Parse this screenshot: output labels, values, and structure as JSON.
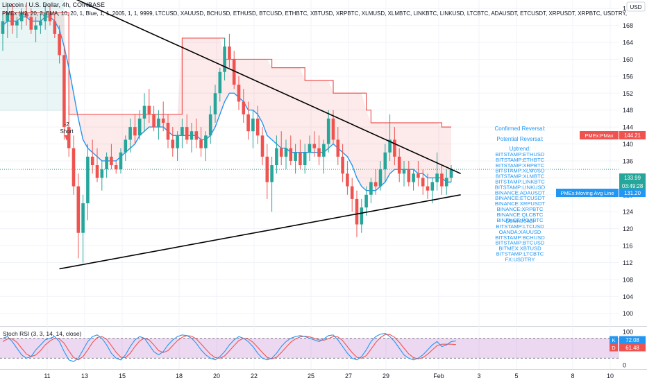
{
  "header": {
    "symbol": "Litecoin / U.S. Dollar, 4h, COINBASE",
    "indicator": "PMEx (H2, 20, 3, EMA, 10, 20, 1, Blue, 1, 1, 2005, 1, 1, 9999, LTCUSD, XAUUSD, BCHUSD, ETHUSD, BTCUSD, ETHBTC, XBTUSD, XRPBTC, XLMUSD, XLMBTC, LINKBTC, LINKUSD, LTCBTC, ADAUSDT, ETCUSDT, XRPUSDT, XRPBTC, USDTRY,"
  },
  "currency_badge": "USD",
  "rsi_label": "Stoch RSI (3, 3, 14, 14, close)",
  "short_signal": {
    "line1": "-2",
    "line2": "Short"
  },
  "panel": {
    "confirmed": "Confirmed Reversal:",
    "potential": "Potential Reversal:",
    "uptrend_title": "Uptrend:",
    "uptrend": [
      "BITSTAMP:ETHUSD",
      "BITSTAMP:ETHBTC",
      "BITSTAMP:XRPBTC",
      "BITSTAMP:XLMUSD",
      "BITSTAMP:XLMBTC",
      "BITSTAMP:LINKBTC",
      "BITSTAMP:LINKUSD",
      "BINANCE:ADAUSDT",
      "BINANCE:ETCUSDT",
      "BINANCE:XRPUSDT",
      "BINANCE:XRPBTC",
      "BINANCE:QLCBTC",
      "BINANCE:POABTC"
    ],
    "downtrend_title": "Downtrend:",
    "downtrend": [
      "BITSTAMP:LTCUSD",
      "OANDA:XAUUSD",
      "BITSTAMP:BCHUSD",
      "BITSTAMP:BTCUSD",
      "BITMEX:XBTUSD",
      "BITSTAMP:LTCBTC",
      "FX:USDTRY"
    ]
  },
  "price_tags": [
    {
      "label": "PMEx:PMax",
      "value": "144.21",
      "color": "#ef5350"
    },
    {
      "label": "",
      "value": "133.99",
      "color": "#26a69a"
    },
    {
      "label": "",
      "value": "03:49:28",
      "color": "#26a69a"
    },
    {
      "label": "PMEx:Moving Avg Line",
      "value": "131.20",
      "color": "#2196f3"
    }
  ],
  "rsi_tags": [
    {
      "label": "K",
      "value": "72.08",
      "color": "#2196f3"
    },
    {
      "label": "D",
      "value": "61.48",
      "color": "#ef5350"
    }
  ],
  "chart_data": {
    "type": "candlestick",
    "price_axis": {
      "ylim": [
        97,
        174
      ],
      "ticks": [
        100,
        104,
        108,
        112,
        116,
        120,
        124,
        128,
        132,
        136,
        140,
        144,
        148,
        152,
        156,
        160,
        164,
        168,
        172
      ]
    },
    "time_axis": {
      "labels": [
        "11",
        "13",
        "15",
        "18",
        "20",
        "22",
        "25",
        "27",
        "29",
        "Feb",
        "3",
        "5",
        "8",
        "10"
      ]
    },
    "ohlc": [
      [
        166,
        171,
        162,
        169
      ],
      [
        169,
        173,
        165,
        171
      ],
      [
        171,
        173,
        166,
        168
      ],
      [
        168,
        170,
        165,
        169
      ],
      [
        169,
        172,
        167,
        171
      ],
      [
        171,
        173,
        168,
        170
      ],
      [
        170,
        172,
        166,
        167
      ],
      [
        167,
        170,
        164,
        168
      ],
      [
        168,
        171,
        166,
        169
      ],
      [
        169,
        173,
        167,
        171
      ],
      [
        171,
        173,
        168,
        169
      ],
      [
        169,
        171,
        165,
        166
      ],
      [
        166,
        168,
        159,
        161
      ],
      [
        161,
        163,
        141,
        144
      ],
      [
        144,
        149,
        137,
        139
      ],
      [
        139,
        142,
        128,
        130
      ],
      [
        130,
        133,
        113,
        119
      ],
      [
        119,
        128,
        112,
        126
      ],
      [
        126,
        140,
        122,
        137
      ],
      [
        137,
        141,
        133,
        135
      ],
      [
        135,
        139,
        131,
        132
      ],
      [
        132,
        136,
        129,
        134
      ],
      [
        134,
        138,
        132,
        137
      ],
      [
        137,
        140,
        134,
        135
      ],
      [
        135,
        136,
        133,
        134
      ],
      [
        134,
        139,
        133,
        138
      ],
      [
        138,
        142,
        136,
        141
      ],
      [
        141,
        146,
        138,
        144
      ],
      [
        144,
        147,
        140,
        142
      ],
      [
        142,
        148,
        141,
        146
      ],
      [
        146,
        152,
        143,
        149
      ],
      [
        149,
        153,
        145,
        147
      ],
      [
        147,
        149,
        143,
        144
      ],
      [
        144,
        148,
        141,
        146
      ],
      [
        146,
        150,
        143,
        145
      ],
      [
        145,
        147,
        139,
        141
      ],
      [
        141,
        144,
        137,
        139
      ],
      [
        139,
        143,
        136,
        142
      ],
      [
        142,
        146,
        139,
        144
      ],
      [
        144,
        147,
        140,
        141
      ],
      [
        141,
        145,
        138,
        143
      ],
      [
        143,
        146,
        139,
        141
      ],
      [
        141,
        144,
        137,
        139
      ],
      [
        139,
        143,
        136,
        142
      ],
      [
        142,
        149,
        140,
        147
      ],
      [
        147,
        154,
        145,
        152
      ],
      [
        152,
        158,
        150,
        157
      ],
      [
        157,
        165,
        155,
        163
      ],
      [
        163,
        166,
        158,
        160
      ],
      [
        160,
        162,
        153,
        154
      ],
      [
        154,
        156,
        148,
        150
      ],
      [
        150,
        153,
        145,
        147
      ],
      [
        147,
        150,
        141,
        143
      ],
      [
        143,
        148,
        139,
        146
      ],
      [
        146,
        149,
        140,
        142
      ],
      [
        142,
        144,
        135,
        137
      ],
      [
        137,
        140,
        127,
        131
      ],
      [
        131,
        137,
        124,
        135
      ],
      [
        135,
        142,
        133,
        139
      ],
      [
        139,
        143,
        135,
        137
      ],
      [
        137,
        141,
        134,
        139
      ],
      [
        139,
        142,
        135,
        136
      ],
      [
        136,
        140,
        133,
        138
      ],
      [
        138,
        141,
        134,
        135
      ],
      [
        135,
        140,
        133,
        138
      ],
      [
        138,
        142,
        136,
        140
      ],
      [
        140,
        143,
        137,
        139
      ],
      [
        139,
        142,
        135,
        137
      ],
      [
        137,
        141,
        133,
        140
      ],
      [
        140,
        148,
        138,
        146
      ],
      [
        146,
        148,
        140,
        141
      ],
      [
        141,
        144,
        135,
        137
      ],
      [
        137,
        140,
        131,
        133
      ],
      [
        133,
        136,
        128,
        130
      ],
      [
        130,
        132,
        124,
        127
      ],
      [
        127,
        129,
        118,
        121
      ],
      [
        121,
        127,
        119,
        125
      ],
      [
        125,
        130,
        123,
        128
      ],
      [
        128,
        132,
        126,
        131
      ],
      [
        131,
        134,
        128,
        130
      ],
      [
        130,
        136,
        129,
        134
      ],
      [
        134,
        140,
        131,
        138
      ],
      [
        138,
        147,
        136,
        141
      ],
      [
        141,
        144,
        135,
        137
      ],
      [
        137,
        139,
        131,
        133
      ],
      [
        133,
        136,
        130,
        134
      ],
      [
        134,
        136,
        130,
        131
      ],
      [
        131,
        134,
        129,
        133
      ],
      [
        133,
        136,
        130,
        132
      ],
      [
        132,
        134,
        128,
        130
      ],
      [
        130,
        133,
        127,
        129
      ],
      [
        129,
        132,
        126,
        131
      ],
      [
        131,
        138,
        129,
        133
      ],
      [
        133,
        135,
        128,
        130
      ],
      [
        130,
        134,
        128,
        132
      ],
      [
        132,
        135,
        131,
        134
      ]
    ],
    "ma_line": [
      168,
      169,
      169,
      169,
      170,
      170,
      169,
      169,
      169,
      170,
      170,
      169,
      167,
      163,
      158,
      152,
      146,
      141,
      139,
      138,
      137,
      136,
      136,
      136,
      136,
      137,
      138,
      139,
      140,
      142,
      143,
      144,
      144,
      144,
      144,
      143,
      142,
      142,
      142,
      142,
      142,
      142,
      141,
      141,
      142,
      144,
      147,
      150,
      152,
      152,
      151,
      150,
      148,
      148,
      147,
      145,
      142,
      141,
      140,
      139,
      139,
      138,
      138,
      138,
      138,
      138,
      138,
      138,
      138,
      139,
      140,
      139,
      138,
      137,
      135,
      132,
      130,
      129,
      129,
      129,
      130,
      131,
      133,
      134,
      134,
      134,
      134,
      134,
      133,
      133,
      132,
      132,
      132,
      132,
      131,
      131,
      131
    ],
    "pmax_line": [
      171,
      171,
      171,
      171,
      171,
      171,
      171,
      171,
      171,
      171,
      171,
      171,
      171,
      171,
      147,
      147,
      147,
      147,
      147,
      147,
      147,
      147,
      147,
      147,
      147,
      147,
      147,
      147,
      147,
      147,
      147,
      147,
      147,
      147,
      147,
      147,
      147,
      147,
      165,
      165,
      165,
      165,
      165,
      165,
      165,
      165,
      165,
      160,
      160,
      160,
      160,
      160,
      160,
      160,
      160,
      160,
      160,
      158,
      158,
      158,
      158,
      158,
      158,
      158,
      155,
      155,
      155,
      155,
      155,
      155,
      152,
      152,
      152,
      152,
      152,
      152,
      152,
      148,
      145,
      145,
      145,
      145,
      145,
      145,
      145,
      145,
      145,
      145,
      145,
      145,
      145,
      145,
      145,
      144,
      144,
      144,
      144
    ],
    "trendlines": [
      {
        "from": [
          0,
          182
        ],
        "to": [
          97,
          133
        ]
      },
      {
        "from": [
          12,
          110.5
        ],
        "to": [
          97,
          128
        ]
      }
    ],
    "stoch_rsi": {
      "ylim": [
        0,
        100
      ],
      "ticks": [
        0,
        100
      ],
      "band": [
        20,
        80
      ],
      "k": [
        80,
        85,
        70,
        50,
        30,
        20,
        25,
        45,
        60,
        75,
        80,
        85,
        70,
        40,
        15,
        10,
        20,
        45,
        70,
        85,
        90,
        80,
        60,
        35,
        20,
        15,
        30,
        55,
        75,
        85,
        80,
        60,
        40,
        30,
        40,
        60,
        75,
        85,
        90,
        88,
        80,
        65,
        45,
        30,
        20,
        15,
        25,
        40,
        60,
        75,
        85,
        80,
        70,
        55,
        35,
        20,
        15,
        20,
        35,
        55,
        70,
        80,
        85,
        88,
        85,
        80,
        75,
        70,
        78,
        88,
        90,
        75,
        55,
        35,
        20,
        15,
        25,
        45,
        70,
        85,
        92,
        95,
        85,
        70,
        50,
        30,
        20,
        15,
        20,
        30,
        45,
        60,
        70,
        55,
        60,
        70,
        72
      ],
      "d": [
        70,
        78,
        78,
        68,
        50,
        33,
        25,
        30,
        43,
        60,
        72,
        80,
        78,
        65,
        42,
        22,
        15,
        25,
        45,
        67,
        82,
        85,
        77,
        58,
        38,
        23,
        22,
        35,
        55,
        72,
        80,
        75,
        60,
        43,
        37,
        43,
        58,
        73,
        83,
        88,
        86,
        78,
        63,
        47,
        32,
        22,
        20,
        27,
        42,
        58,
        73,
        80,
        78,
        68,
        53,
        37,
        23,
        18,
        23,
        37,
        53,
        68,
        78,
        84,
        86,
        84,
        80,
        75,
        74,
        79,
        85,
        84,
        73,
        55,
        37,
        23,
        20,
        28,
        47,
        67,
        82,
        91,
        91,
        83,
        68,
        50,
        33,
        22,
        18,
        22,
        32,
        45,
        58,
        62,
        62,
        62,
        61
      ]
    }
  }
}
